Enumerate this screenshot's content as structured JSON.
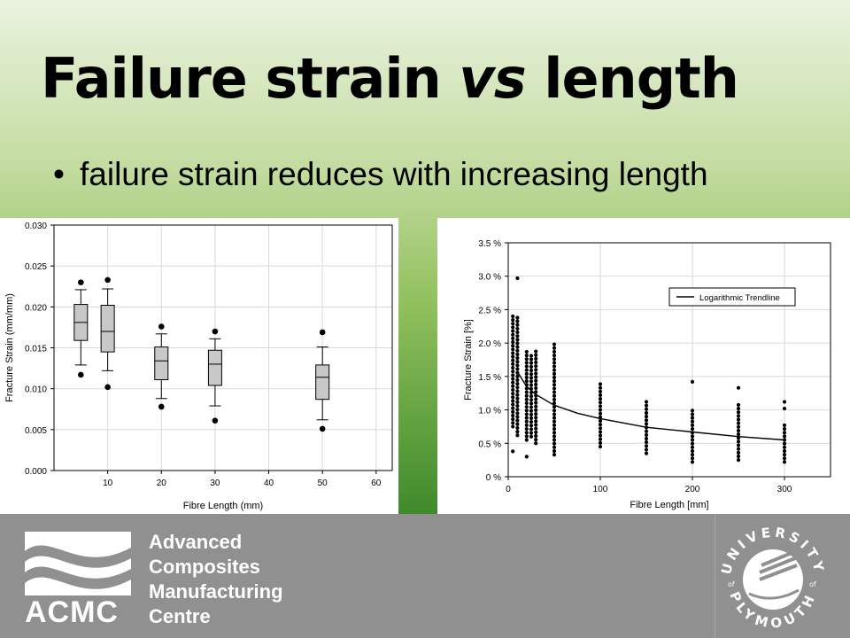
{
  "slide": {
    "title_part1": "Failure strain ",
    "title_vs": "vs",
    "title_part2": " length",
    "bullet": "failure strain reduces with increasing length"
  },
  "footer": {
    "acmc_lines": [
      "Advanced",
      "Composites",
      "Manufacturing",
      "Centre"
    ],
    "acmc_abbr": "ACMC",
    "university_ring_top": "UNIVERSITY",
    "university_ring_of": "of",
    "university_ring_bottom": "PLYMOUTH"
  },
  "colors": {
    "box_fill": "#c8c8c8",
    "grid": "#d9d9d9",
    "footer_bg": "#909090"
  },
  "chart_data": [
    {
      "type": "box",
      "xlabel": "Fibre Length (mm)",
      "ylabel": "Fracture Strain (mm/mm)",
      "xlim": [
        0,
        63
      ],
      "ylim": [
        0,
        0.03
      ],
      "xticks": [
        10,
        20,
        30,
        40,
        50,
        60
      ],
      "yticks": [
        0.0,
        0.005,
        0.01,
        0.015,
        0.02,
        0.025,
        0.03
      ],
      "ytick_labels": [
        "0.000",
        "0.005",
        "0.010",
        "0.015",
        "0.020",
        "0.025",
        "0.030"
      ],
      "grid": true,
      "boxes": [
        {
          "x": 5,
          "whisker_low": 0.0129,
          "q1": 0.0159,
          "median": 0.0181,
          "q3": 0.0203,
          "whisker_high": 0.0221,
          "outliers": [
            0.023,
            0.0117
          ]
        },
        {
          "x": 10,
          "whisker_low": 0.0122,
          "q1": 0.0145,
          "median": 0.017,
          "q3": 0.0202,
          "whisker_high": 0.0222,
          "outliers": [
            0.0233,
            0.0102
          ]
        },
        {
          "x": 20,
          "whisker_low": 0.0088,
          "q1": 0.0111,
          "median": 0.0134,
          "q3": 0.0151,
          "whisker_high": 0.0167,
          "outliers": [
            0.0176,
            0.0078
          ]
        },
        {
          "x": 30,
          "whisker_low": 0.0079,
          "q1": 0.0104,
          "median": 0.013,
          "q3": 0.0147,
          "whisker_high": 0.0161,
          "outliers": [
            0.017,
            0.0061
          ]
        },
        {
          "x": 50,
          "whisker_low": 0.0062,
          "q1": 0.0087,
          "median": 0.0114,
          "q3": 0.0129,
          "whisker_high": 0.0151,
          "outliers": [
            0.0169,
            0.0051
          ]
        }
      ]
    },
    {
      "type": "scatter",
      "xlabel": "Fibre Length [mm]",
      "ylabel": "Fracture Strain [%]",
      "xlim": [
        0,
        350
      ],
      "ylim": [
        0,
        3.5
      ],
      "xticks": [
        0,
        100,
        200,
        300
      ],
      "yticks": [
        0,
        0.5,
        1.0,
        1.5,
        2.0,
        2.5,
        3.0,
        3.5
      ],
      "ytick_labels": [
        "0 %",
        "0.5 %",
        "1.0 %",
        "1.5 %",
        "2.0 %",
        "2.5 %",
        "3.0 %",
        "3.5 %"
      ],
      "grid": true,
      "legend": {
        "label": "Logarithmic Trendline",
        "position": "top-right"
      },
      "series": [
        {
          "x": 5,
          "min": 0.75,
          "max": 2.45,
          "extra": [
            0.38
          ]
        },
        {
          "x": 10,
          "min": 0.62,
          "max": 2.42,
          "extra": [
            2.97
          ]
        },
        {
          "x": 20,
          "min": 0.55,
          "max": 1.88,
          "extra": [
            0.3
          ]
        },
        {
          "x": 25,
          "min": 0.6,
          "max": 1.85
        },
        {
          "x": 30,
          "min": 0.5,
          "max": 1.92
        },
        {
          "x": 50,
          "min": 0.33,
          "max": 1.95,
          "extra": [
            1.98
          ]
        },
        {
          "x": 100,
          "min": 0.45,
          "max": 1.42
        },
        {
          "x": 150,
          "min": 0.35,
          "max": 1.12
        },
        {
          "x": 200,
          "min": 0.22,
          "max": 1.02,
          "extra": [
            1.42
          ]
        },
        {
          "x": 250,
          "min": 0.25,
          "max": 1.12,
          "extra": [
            1.33
          ]
        },
        {
          "x": 300,
          "min": 0.22,
          "max": 0.82,
          "extra": [
            1.12,
            1.02
          ]
        }
      ],
      "trendline": {
        "type": "logarithmic",
        "x": [
          10,
          20,
          30,
          50,
          75,
          100,
          150,
          200,
          250,
          300
        ],
        "y": [
          1.57,
          1.35,
          1.23,
          1.07,
          0.95,
          0.87,
          0.74,
          0.67,
          0.6,
          0.55
        ]
      }
    }
  ]
}
